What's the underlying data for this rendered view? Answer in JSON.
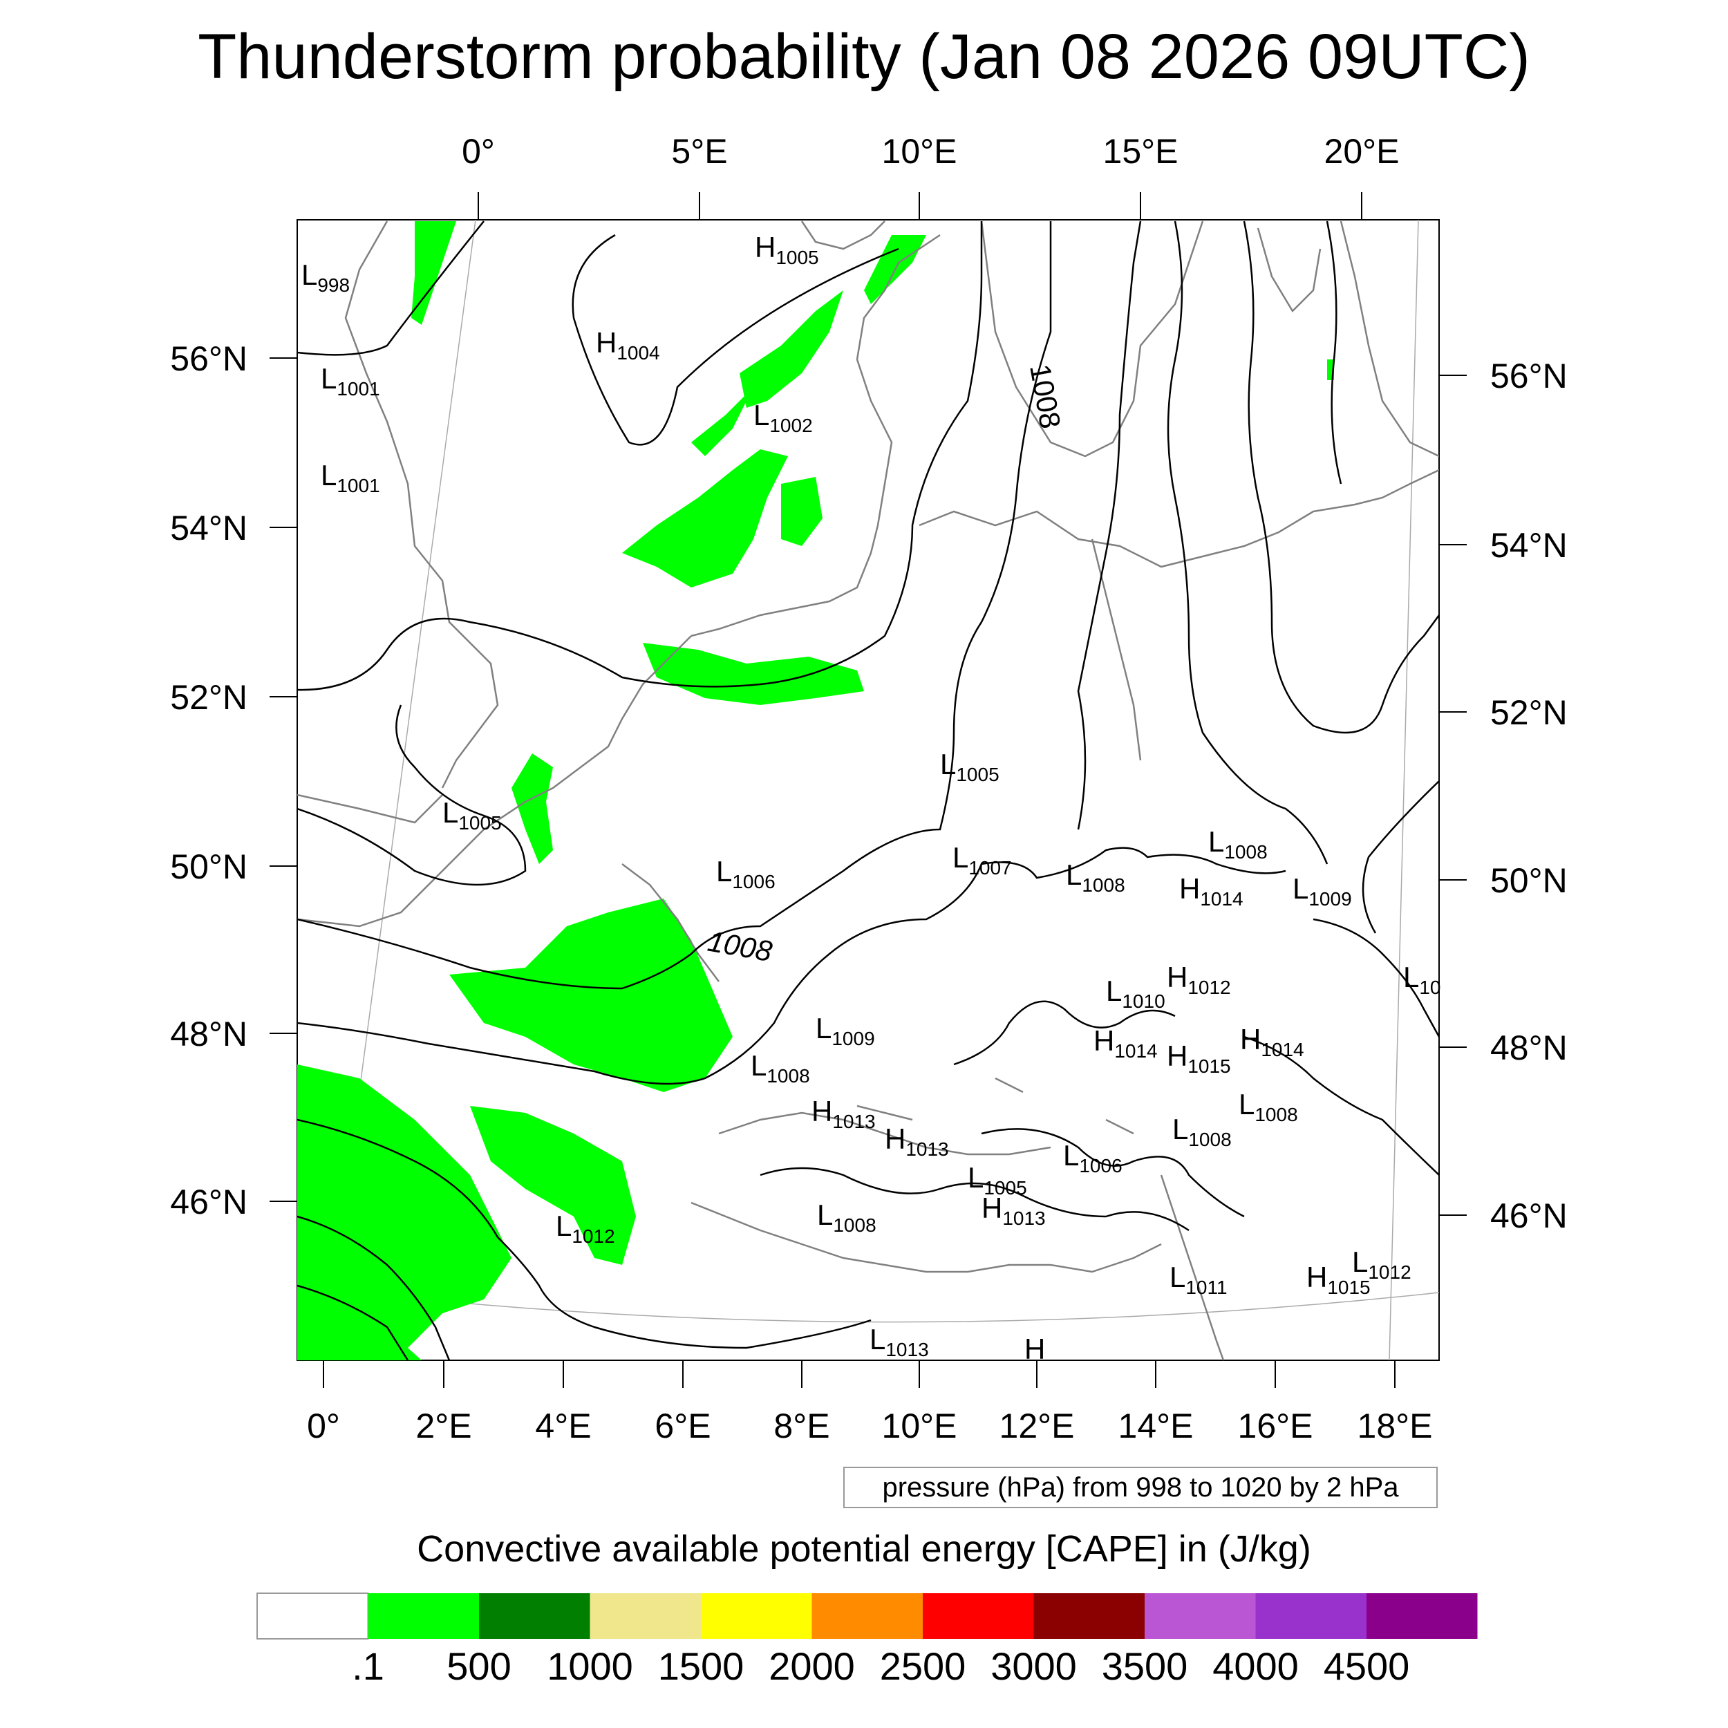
{
  "title": "Thunderstorm probability (Jan 08 2026 09UTC)",
  "map": {
    "top_lon_labels": [
      "0°",
      "5°E",
      "10°E",
      "15°E",
      "20°E"
    ],
    "bottom_lon_labels": [
      "0°",
      "2°E",
      "4°E",
      "6°E",
      "8°E",
      "10°E",
      "12°E",
      "14°E",
      "16°E",
      "18°E"
    ],
    "left_lat_labels": [
      "56°N",
      "54°N",
      "52°N",
      "50°N",
      "48°N",
      "46°N"
    ],
    "right_lat_labels": [
      "56°N",
      "54°N",
      "52°N",
      "50°N",
      "48°N",
      "46°N"
    ],
    "contour_labels": [
      "1008",
      "1008"
    ],
    "pressure_centers": [
      {
        "t": "L",
        "v": "998"
      },
      {
        "t": "H",
        "v": "1005"
      },
      {
        "t": "H",
        "v": "1004"
      },
      {
        "t": "L",
        "v": "1001"
      },
      {
        "t": "L",
        "v": "1002"
      },
      {
        "t": "L",
        "v": "1001"
      },
      {
        "t": "L",
        "v": "1005"
      },
      {
        "t": "L",
        "v": "1005"
      },
      {
        "t": "L",
        "v": "1006"
      },
      {
        "t": "L",
        "v": "1007"
      },
      {
        "t": "L",
        "v": "1008"
      },
      {
        "t": "L",
        "v": "1008"
      },
      {
        "t": "H",
        "v": "1014"
      },
      {
        "t": "L",
        "v": "1009"
      },
      {
        "t": "L",
        "v": "1010"
      },
      {
        "t": "H",
        "v": "1012"
      },
      {
        "t": "L",
        "v": "10"
      },
      {
        "t": "L",
        "v": "1009"
      },
      {
        "t": "H",
        "v": "1014"
      },
      {
        "t": "H",
        "v": "1015"
      },
      {
        "t": "H",
        "v": "1014"
      },
      {
        "t": "L",
        "v": "1008"
      },
      {
        "t": "L",
        "v": "1008"
      },
      {
        "t": "H",
        "v": "1013"
      },
      {
        "t": "H",
        "v": "1013"
      },
      {
        "t": "L",
        "v": "1008"
      },
      {
        "t": "L",
        "v": "1006"
      },
      {
        "t": "L",
        "v": "1005"
      },
      {
        "t": "H",
        "v": "1013"
      },
      {
        "t": "L",
        "v": "1008"
      },
      {
        "t": "L",
        "v": "1012"
      },
      {
        "t": "L",
        "v": "1011"
      },
      {
        "t": "L",
        "v": "1012"
      },
      {
        "t": "H",
        "v": "1015"
      },
      {
        "t": "L",
        "v": "1013"
      },
      {
        "t": "H",
        "v": ""
      }
    ]
  },
  "pressure_note": "pressure (hPa) from 998 to 1020 by 2 hPa",
  "colorbar": {
    "title": "Convective available potential energy [CAPE] in (J/kg)",
    "colors": [
      "#ffffff",
      "#00ff00",
      "#007f00",
      "#f0e68c",
      "#ffff00",
      "#ff8c00",
      "#ff0000",
      "#8b0000",
      "#ba55d3",
      "#9932cc",
      "#8b008b"
    ],
    "labels": [
      ".1",
      "500",
      "1000",
      "1500",
      "2000",
      "2500",
      "3000",
      "3500",
      "4000",
      "4500"
    ]
  },
  "colors": {
    "cape_fill": "#00ff00",
    "coast": "#808080",
    "isobar": "#000000"
  }
}
